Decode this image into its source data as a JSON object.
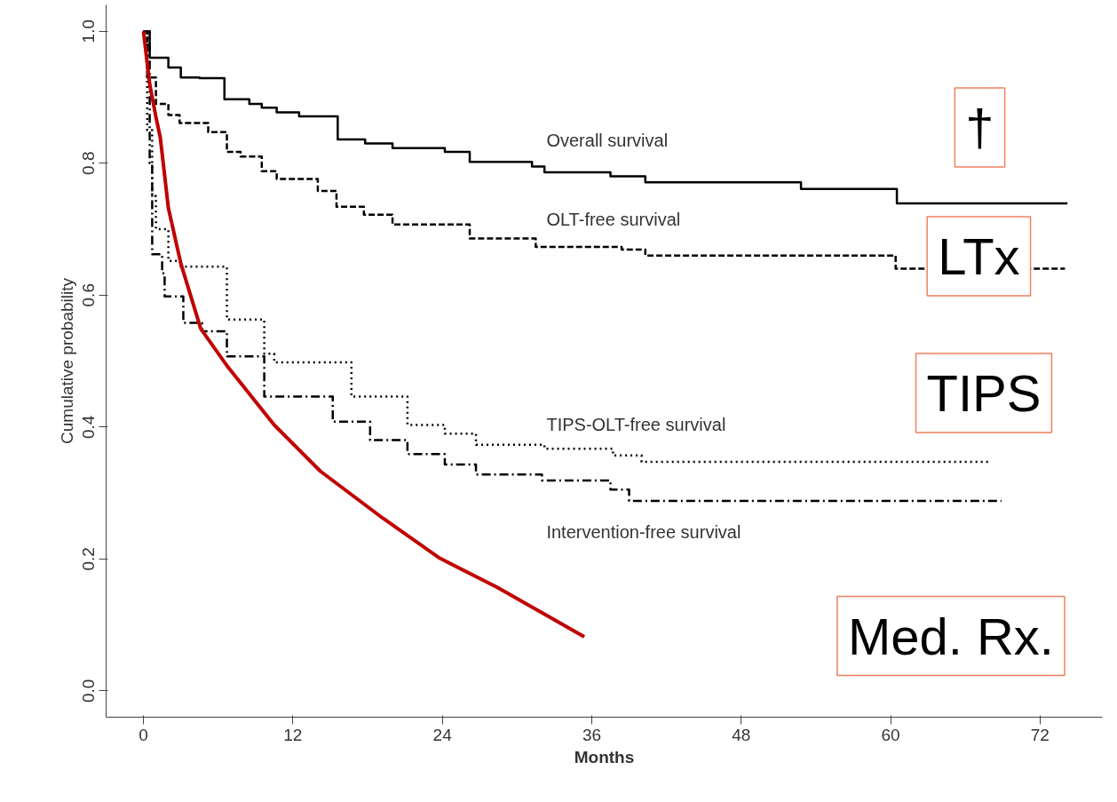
{
  "chart_data": {
    "type": "step",
    "xlabel": "Months",
    "ylabel": "Cumulative probability",
    "xlim": [
      -3,
      77
    ],
    "ylim": [
      -0.04,
      1.04
    ],
    "xticks": [
      0,
      12,
      24,
      36,
      48,
      60,
      72
    ],
    "yticks": [
      {
        "value": 0,
        "label": "0.0"
      },
      0.2,
      0.4,
      0.6,
      0.8,
      {
        "value": 1,
        "label": "1.0"
      }
    ],
    "grid": false,
    "marker": "none",
    "series": [
      {
        "color": "#000000",
        "line_style": "solid",
        "x": [
          0,
          0.5,
          2,
          3,
          4.5,
          6.5,
          8.5,
          9.5,
          10.7,
          12.5,
          15.6,
          17.8,
          20,
          24.2,
          26.2,
          31.2,
          32.2,
          37.5,
          40.3,
          52.8,
          60.5,
          74.2
        ],
        "values": [
          1.0,
          0.96,
          0.945,
          0.93,
          0.929,
          0.897,
          0.89,
          0.884,
          0.877,
          0.871,
          0.836,
          0.83,
          0.823,
          0.817,
          0.802,
          0.795,
          0.786,
          0.78,
          0.771,
          0.761,
          0.739,
          0.739
        ]
      },
      {
        "color": "#000000",
        "line_style": "dashed",
        "x": [
          0,
          0.3,
          1,
          2,
          2.9,
          5.2,
          6.7,
          7.8,
          9.5,
          10.7,
          14,
          15.5,
          17.7,
          20,
          26.2,
          31.5,
          38.4,
          40.3,
          60.4,
          74
        ],
        "values": [
          1.0,
          0.93,
          0.89,
          0.873,
          0.861,
          0.847,
          0.817,
          0.81,
          0.788,
          0.776,
          0.758,
          0.734,
          0.722,
          0.707,
          0.686,
          0.673,
          0.669,
          0.66,
          0.64,
          0.64
        ]
      },
      {
        "color": "#000000",
        "line_style": "dotted",
        "x": [
          0,
          0.3,
          0.7,
          1,
          2,
          3,
          6.7,
          9.7,
          10.5,
          13.2,
          16.7,
          21.2,
          24.2,
          26.7,
          32.2,
          37.7,
          40,
          67.9
        ],
        "values": [
          1.0,
          0.85,
          0.75,
          0.7,
          0.652,
          0.643,
          0.563,
          0.511,
          0.498,
          0.498,
          0.446,
          0.403,
          0.39,
          0.373,
          0.367,
          0.357,
          0.347,
          0.347
        ]
      },
      {
        "color": "#000000",
        "line_style": "dashdot",
        "x": [
          0,
          0.5,
          0.7,
          1.5,
          1.7,
          3.2,
          4.7,
          6.7,
          9.7,
          12.7,
          15.2,
          18.2,
          21.2,
          24.2,
          26.7,
          32,
          37.5,
          39,
          68.9
        ],
        "values": [
          1.0,
          0.8,
          0.662,
          0.633,
          0.598,
          0.558,
          0.545,
          0.507,
          0.446,
          0.446,
          0.408,
          0.38,
          0.359,
          0.343,
          0.328,
          0.319,
          0.305,
          0.288,
          0.288
        ]
      },
      {
        "type": "line",
        "color": "#c00000",
        "line_style": "solid",
        "x": [
          0,
          0.5,
          1,
          1.35,
          2,
          3,
          4.6,
          6.7,
          10.5,
          14.2,
          19.2,
          23.8,
          28.4,
          35.4
        ],
        "values": [
          1.0,
          0.92,
          0.87,
          0.839,
          0.732,
          0.648,
          0.549,
          0.493,
          0.403,
          0.333,
          0.262,
          0.201,
          0.157,
          0.082
        ]
      }
    ],
    "annotations": [
      "Overall survival",
      "OLT-free survival",
      "TIPS-OLT-free survival",
      "Intervention-free survival",
      "†",
      "LTx",
      "TIPS",
      "Med. Rx."
    ]
  }
}
